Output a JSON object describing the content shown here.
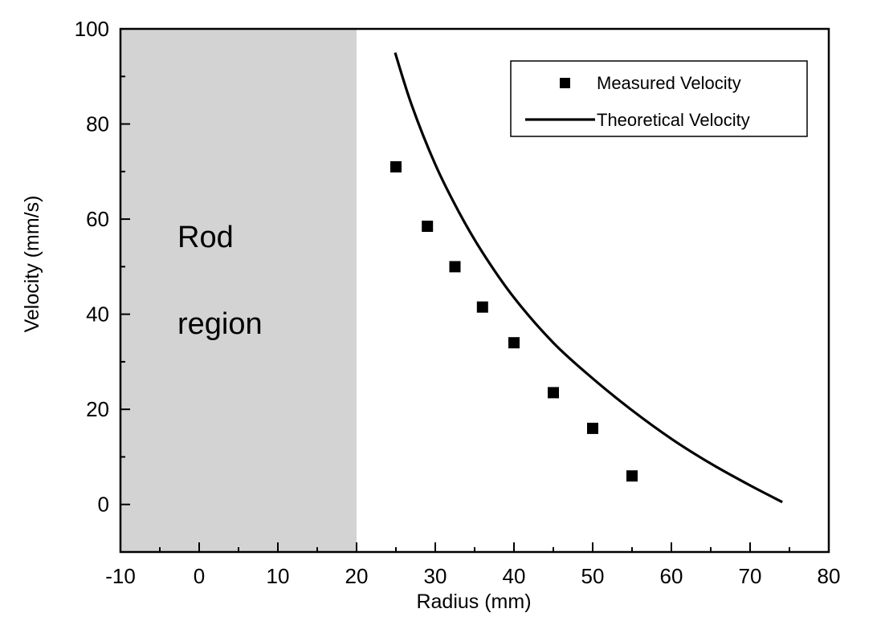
{
  "chart_data": {
    "type": "scatter",
    "title": "",
    "xlabel": "Radius (mm)",
    "ylabel": "Velocity (mm/s)",
    "xlim": [
      -10,
      80
    ],
    "ylim": [
      -10,
      100
    ],
    "x_ticks": [
      -10,
      0,
      10,
      20,
      30,
      40,
      50,
      60,
      70,
      80
    ],
    "y_ticks": [
      0,
      20,
      40,
      60,
      80,
      100
    ],
    "x_tick_labels": [
      "-10",
      "0",
      "10",
      "20",
      "30",
      "40",
      "50",
      "60",
      "70",
      "80"
    ],
    "y_tick_labels": [
      "0",
      "20",
      "40",
      "60",
      "80",
      "100"
    ],
    "grid": false,
    "legend_position": "top-right",
    "shaded_region": {
      "x_start": -10,
      "x_end": 20,
      "color": "#d3d3d3",
      "label_line1": "Rod",
      "label_line2": "region"
    },
    "series": [
      {
        "name": "Measured Velocity",
        "kind": "markers",
        "marker": "square",
        "color": "#000000",
        "x": [
          25,
          29,
          32.5,
          36,
          40,
          45,
          50,
          55
        ],
        "y": [
          71,
          58.5,
          50,
          41.5,
          34,
          23.5,
          16,
          6
        ]
      },
      {
        "name": "Theoretical Velocity",
        "kind": "line",
        "color": "#000000",
        "x": [
          24.9,
          27,
          30,
          33,
          36,
          40,
          45,
          50,
          55,
          60,
          65,
          70,
          74.1
        ],
        "y": [
          95,
          84,
          71.5,
          61.5,
          53,
          43.5,
          34,
          26.5,
          19.8,
          13.8,
          8.6,
          4,
          0.5
        ]
      }
    ]
  }
}
